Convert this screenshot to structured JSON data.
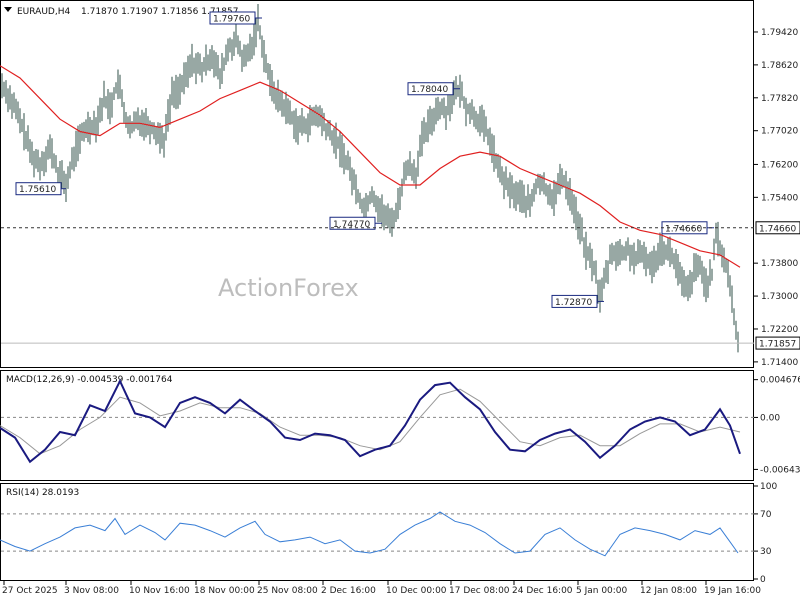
{
  "header": {
    "symbol": "EURAUD,H4",
    "ohlc": "1.71870 1.71907 1.71856 1.71857"
  },
  "watermark": "ActionForex",
  "chart_data": [
    {
      "type": "line",
      "panel": "price",
      "ylim": [
        1.713,
        1.801
      ],
      "y_ticks": [
        "1.79420",
        "1.78620",
        "1.77820",
        "1.77020",
        "1.76200",
        "1.75400",
        "1.73800",
        "1.73000",
        "1.72200",
        "1.71400"
      ],
      "x_ticks": [
        "27 Oct 2025",
        "3 Nov 08:00",
        "10 Nov 16:00",
        "18 Nov 00:00",
        "25 Nov 08:00",
        "2 Dec 16:00",
        "10 Dec 00:00",
        "17 Dec 08:00",
        "24 Dec 16:00",
        "5 Jan 00:00",
        "12 Jan 08:00",
        "19 Jan 16:00"
      ],
      "price_points": [
        [
          0,
          1.782
        ],
        [
          8,
          1.779
        ],
        [
          16,
          1.775
        ],
        [
          24,
          1.77
        ],
        [
          32,
          1.764
        ],
        [
          40,
          1.762
        ],
        [
          50,
          1.766
        ],
        [
          58,
          1.76
        ],
        [
          66,
          1.757
        ],
        [
          76,
          1.766
        ],
        [
          86,
          1.771
        ],
        [
          96,
          1.772
        ],
        [
          104,
          1.778
        ],
        [
          110,
          1.776
        ],
        [
          118,
          1.782
        ],
        [
          124,
          1.775
        ],
        [
          130,
          1.77
        ],
        [
          138,
          1.773
        ],
        [
          146,
          1.772
        ],
        [
          156,
          1.77
        ],
        [
          164,
          1.768
        ],
        [
          172,
          1.779
        ],
        [
          182,
          1.781
        ],
        [
          192,
          1.787
        ],
        [
          202,
          1.785
        ],
        [
          212,
          1.789
        ],
        [
          220,
          1.783
        ],
        [
          228,
          1.79
        ],
        [
          236,
          1.792
        ],
        [
          244,
          1.787
        ],
        [
          252,
          1.791
        ],
        [
          258,
          1.797
        ],
        [
          264,
          1.789
        ],
        [
          270,
          1.782
        ],
        [
          278,
          1.778
        ],
        [
          288,
          1.775
        ],
        [
          298,
          1.771
        ],
        [
          308,
          1.772
        ],
        [
          318,
          1.774
        ],
        [
          328,
          1.77
        ],
        [
          338,
          1.767
        ],
        [
          348,
          1.762
        ],
        [
          356,
          1.756
        ],
        [
          364,
          1.751
        ],
        [
          372,
          1.755
        ],
        [
          380,
          1.751
        ],
        [
          390,
          1.748
        ],
        [
          396,
          1.75
        ],
        [
          402,
          1.757
        ],
        [
          408,
          1.762
        ],
        [
          416,
          1.76
        ],
        [
          422,
          1.768
        ],
        [
          430,
          1.772
        ],
        [
          438,
          1.776
        ],
        [
          446,
          1.775
        ],
        [
          454,
          1.779
        ],
        [
          460,
          1.78
        ],
        [
          466,
          1.776
        ],
        [
          474,
          1.774
        ],
        [
          482,
          1.772
        ],
        [
          490,
          1.768
        ],
        [
          498,
          1.761
        ],
        [
          506,
          1.757
        ],
        [
          514,
          1.755
        ],
        [
          522,
          1.754
        ],
        [
          530,
          1.752
        ],
        [
          538,
          1.758
        ],
        [
          546,
          1.756
        ],
        [
          554,
          1.754
        ],
        [
          562,
          1.759
        ],
        [
          570,
          1.755
        ],
        [
          578,
          1.748
        ],
        [
          586,
          1.741
        ],
        [
          594,
          1.737
        ],
        [
          600,
          1.73
        ],
        [
          606,
          1.735
        ],
        [
          612,
          1.741
        ],
        [
          620,
          1.74
        ],
        [
          628,
          1.741
        ],
        [
          636,
          1.739
        ],
        [
          644,
          1.74
        ],
        [
          652,
          1.737
        ],
        [
          660,
          1.742
        ],
        [
          668,
          1.741
        ],
        [
          676,
          1.738
        ],
        [
          682,
          1.733
        ],
        [
          688,
          1.731
        ],
        [
          694,
          1.736
        ],
        [
          700,
          1.737
        ],
        [
          706,
          1.733
        ],
        [
          712,
          1.735
        ],
        [
          716,
          1.745
        ],
        [
          720,
          1.742
        ],
        [
          726,
          1.737
        ],
        [
          730,
          1.733
        ],
        [
          734,
          1.725
        ],
        [
          738,
          1.718
        ]
      ],
      "series": [
        {
          "name": "",
          "color": "#e02020",
          "points": [
            [
              0,
              1.786
            ],
            [
              20,
              1.783
            ],
            [
              40,
              1.778
            ],
            [
              60,
              1.773
            ],
            [
              80,
              1.77
            ],
            [
              100,
              1.769
            ],
            [
              120,
              1.772
            ],
            [
              140,
              1.772
            ],
            [
              160,
              1.771
            ],
            [
              180,
              1.773
            ],
            [
              200,
              1.775
            ],
            [
              220,
              1.778
            ],
            [
              240,
              1.78
            ],
            [
              260,
              1.782
            ],
            [
              280,
              1.78
            ],
            [
              300,
              1.777
            ],
            [
              320,
              1.774
            ],
            [
              340,
              1.77
            ],
            [
              360,
              1.765
            ],
            [
              380,
              1.76
            ],
            [
              400,
              1.757
            ],
            [
              420,
              1.757
            ],
            [
              440,
              1.761
            ],
            [
              460,
              1.764
            ],
            [
              480,
              1.765
            ],
            [
              500,
              1.764
            ],
            [
              520,
              1.761
            ],
            [
              540,
              1.759
            ],
            [
              560,
              1.757
            ],
            [
              580,
              1.755
            ],
            [
              600,
              1.752
            ],
            [
              620,
              1.748
            ],
            [
              640,
              1.746
            ],
            [
              660,
              1.745
            ],
            [
              680,
              1.743
            ],
            [
              700,
              1.741
            ],
            [
              720,
              1.74
            ],
            [
              740,
              1.737
            ]
          ]
        }
      ],
      "annotations": [
        "1.79760",
        "1.75610",
        "1.78040",
        "1.74770",
        "1.72870",
        "1.74660"
      ],
      "hline_label": "1.74660",
      "current_label": "1.71857"
    },
    {
      "type": "line",
      "panel": "macd",
      "title": "MACD(12,26,9) -0.004539 -0.001764",
      "ylim": [
        -0.0075,
        0.0055
      ],
      "y_ticks": [
        "0.004676",
        "0.00",
        "-0.006436"
      ],
      "series": [
        {
          "name": "MACD",
          "color": "#1a1a80",
          "points": [
            [
              0,
              -0.0013
            ],
            [
              15,
              -0.0025
            ],
            [
              30,
              -0.0055
            ],
            [
              45,
              -0.004
            ],
            [
              60,
              -0.0018
            ],
            [
              75,
              -0.0022
            ],
            [
              90,
              0.0015
            ],
            [
              105,
              0.0008
            ],
            [
              120,
              0.0045
            ],
            [
              135,
              0.0005
            ],
            [
              150,
              0.0
            ],
            [
              165,
              -0.0012
            ],
            [
              180,
              0.0018
            ],
            [
              195,
              0.0025
            ],
            [
              210,
              0.0018
            ],
            [
              225,
              0.0005
            ],
            [
              240,
              0.0022
            ],
            [
              255,
              0.0008
            ],
            [
              270,
              -0.0005
            ],
            [
              285,
              -0.0025
            ],
            [
              300,
              -0.0028
            ],
            [
              315,
              -0.002
            ],
            [
              330,
              -0.0022
            ],
            [
              345,
              -0.0028
            ],
            [
              360,
              -0.0048
            ],
            [
              375,
              -0.004
            ],
            [
              390,
              -0.0035
            ],
            [
              405,
              -0.001
            ],
            [
              420,
              0.0022
            ],
            [
              435,
              0.004
            ],
            [
              450,
              0.0043
            ],
            [
              465,
              0.0025
            ],
            [
              480,
              0.001
            ],
            [
              495,
              -0.0018
            ],
            [
              510,
              -0.004
            ],
            [
              525,
              -0.0042
            ],
            [
              540,
              -0.0028
            ],
            [
              555,
              -0.002
            ],
            [
              570,
              -0.0015
            ],
            [
              585,
              -0.003
            ],
            [
              600,
              -0.005
            ],
            [
              615,
              -0.0035
            ],
            [
              630,
              -0.0015
            ],
            [
              645,
              -0.0005
            ],
            [
              660,
              0.0
            ],
            [
              675,
              -0.0005
            ],
            [
              690,
              -0.0022
            ],
            [
              705,
              -0.0015
            ],
            [
              720,
              0.001
            ],
            [
              730,
              -0.001
            ],
            [
              740,
              -0.0045
            ]
          ]
        },
        {
          "name": "Signal",
          "color": "#999999",
          "points": [
            [
              0,
              -0.001
            ],
            [
              20,
              -0.0025
            ],
            [
              40,
              -0.0045
            ],
            [
              60,
              -0.0035
            ],
            [
              80,
              -0.0015
            ],
            [
              100,
              0.0
            ],
            [
              120,
              0.0025
            ],
            [
              140,
              0.0018
            ],
            [
              160,
              0.0002
            ],
            [
              180,
              0.0008
            ],
            [
              200,
              0.0018
            ],
            [
              220,
              0.0012
            ],
            [
              240,
              0.0012
            ],
            [
              260,
              0.0005
            ],
            [
              280,
              -0.0012
            ],
            [
              300,
              -0.0022
            ],
            [
              320,
              -0.0022
            ],
            [
              340,
              -0.0025
            ],
            [
              360,
              -0.0035
            ],
            [
              380,
              -0.004
            ],
            [
              400,
              -0.003
            ],
            [
              420,
              0.0
            ],
            [
              440,
              0.0028
            ],
            [
              460,
              0.0035
            ],
            [
              480,
              0.002
            ],
            [
              500,
              -0.0005
            ],
            [
              520,
              -0.003
            ],
            [
              540,
              -0.0035
            ],
            [
              560,
              -0.0025
            ],
            [
              580,
              -0.0022
            ],
            [
              600,
              -0.0035
            ],
            [
              620,
              -0.0035
            ],
            [
              640,
              -0.002
            ],
            [
              660,
              -0.0008
            ],
            [
              680,
              -0.0008
            ],
            [
              700,
              -0.0018
            ],
            [
              720,
              -0.0012
            ],
            [
              740,
              -0.0018
            ]
          ]
        }
      ]
    },
    {
      "type": "line",
      "panel": "rsi",
      "title": "RSI(14) 28.0193",
      "ylim": [
        0,
        100
      ],
      "y_ticks": [
        "100",
        "70",
        "30",
        "0"
      ],
      "levels": [
        70,
        30
      ],
      "series": [
        {
          "name": "RSI(14)",
          "color": "#3a7fd6",
          "points": [
            [
              0,
              42
            ],
            [
              15,
              35
            ],
            [
              30,
              30
            ],
            [
              45,
              38
            ],
            [
              60,
              45
            ],
            [
              75,
              55
            ],
            [
              90,
              58
            ],
            [
              105,
              52
            ],
            [
              115,
              65
            ],
            [
              125,
              48
            ],
            [
              140,
              58
            ],
            [
              155,
              50
            ],
            [
              165,
              42
            ],
            [
              180,
              60
            ],
            [
              195,
              58
            ],
            [
              210,
              52
            ],
            [
              225,
              45
            ],
            [
              240,
              55
            ],
            [
              255,
              62
            ],
            [
              265,
              48
            ],
            [
              280,
              40
            ],
            [
              295,
              42
            ],
            [
              310,
              45
            ],
            [
              325,
              38
            ],
            [
              340,
              42
            ],
            [
              355,
              30
            ],
            [
              370,
              28
            ],
            [
              385,
              32
            ],
            [
              400,
              48
            ],
            [
              415,
              58
            ],
            [
              430,
              65
            ],
            [
              440,
              72
            ],
            [
              455,
              62
            ],
            [
              470,
              58
            ],
            [
              485,
              50
            ],
            [
              500,
              38
            ],
            [
              515,
              28
            ],
            [
              530,
              30
            ],
            [
              545,
              48
            ],
            [
              560,
              55
            ],
            [
              575,
              42
            ],
            [
              590,
              32
            ],
            [
              605,
              25
            ],
            [
              620,
              48
            ],
            [
              635,
              55
            ],
            [
              650,
              52
            ],
            [
              665,
              48
            ],
            [
              680,
              42
            ],
            [
              695,
              52
            ],
            [
              710,
              48
            ],
            [
              720,
              55
            ],
            [
              730,
              40
            ],
            [
              738,
              28
            ]
          ]
        }
      ]
    }
  ]
}
